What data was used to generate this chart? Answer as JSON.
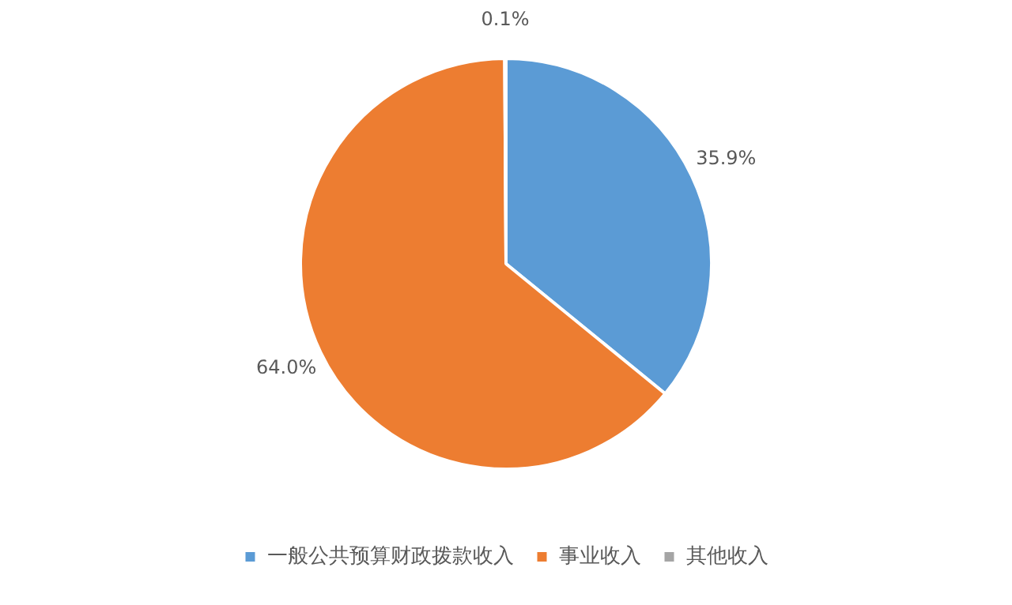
{
  "chart_data": {
    "type": "pie",
    "categories": [
      "一般公共预算财政拨款收入",
      "事业收入",
      "其他收入"
    ],
    "values": [
      35.9,
      64.0,
      0.1
    ],
    "colors": [
      "#5b9bd5",
      "#ed7d31",
      "#a5a5a5"
    ],
    "value_labels": [
      "35.9%",
      "64.0%",
      "0.1%"
    ],
    "legend": "bottom"
  }
}
